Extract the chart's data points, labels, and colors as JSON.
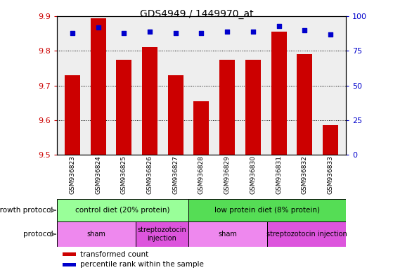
{
  "title": "GDS4949 / 1449970_at",
  "samples": [
    "GSM936823",
    "GSM936824",
    "GSM936825",
    "GSM936826",
    "GSM936827",
    "GSM936828",
    "GSM936829",
    "GSM936830",
    "GSM936831",
    "GSM936832",
    "GSM936833"
  ],
  "transformed_count": [
    9.73,
    9.895,
    9.775,
    9.81,
    9.73,
    9.655,
    9.775,
    9.775,
    9.855,
    9.79,
    9.585
  ],
  "percentile_rank": [
    88,
    92,
    88,
    89,
    88,
    88,
    89,
    89,
    93,
    90,
    87
  ],
  "ylim_left": [
    9.5,
    9.9
  ],
  "ylim_right": [
    0,
    100
  ],
  "yticks_left": [
    9.5,
    9.6,
    9.7,
    9.8,
    9.9
  ],
  "yticks_right": [
    0,
    25,
    50,
    75,
    100
  ],
  "bar_color": "#cc0000",
  "dot_color": "#0000cc",
  "bar_bottom": 9.5,
  "growth_protocol_groups": [
    {
      "label": "control diet (20% protein)",
      "start": 0,
      "end": 4,
      "color": "#99ff99"
    },
    {
      "label": "low protein diet (8% protein)",
      "start": 5,
      "end": 10,
      "color": "#55dd55"
    }
  ],
  "protocol_groups": [
    {
      "label": "sham",
      "start": 0,
      "end": 2,
      "color": "#ee88ee"
    },
    {
      "label": "streptozotocin\ninjection",
      "start": 3,
      "end": 4,
      "color": "#dd55dd"
    },
    {
      "label": "sham",
      "start": 5,
      "end": 7,
      "color": "#ee88ee"
    },
    {
      "label": "streptozotocin injection",
      "start": 8,
      "end": 10,
      "color": "#dd55dd"
    }
  ],
  "legend_bar_label": "transformed count",
  "legend_dot_label": "percentile rank within the sample",
  "growth_protocol_label": "growth protocol",
  "protocol_label": "protocol",
  "plot_bg": "#eeeeee",
  "tick_color_left": "#cc0000",
  "tick_color_right": "#0000cc"
}
